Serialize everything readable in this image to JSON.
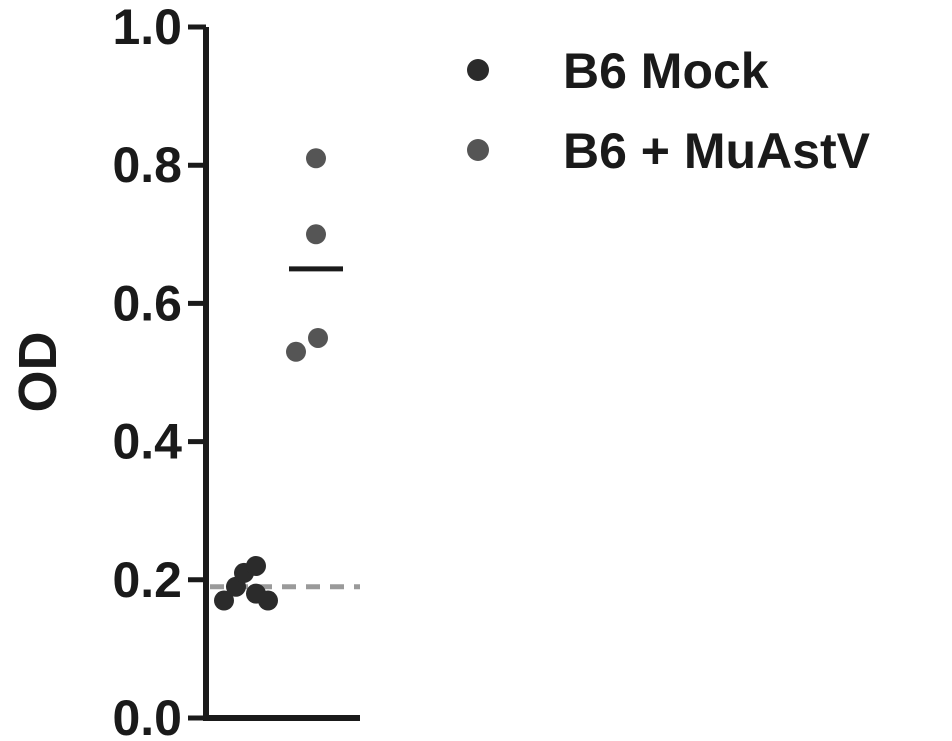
{
  "chart_data": {
    "type": "scatter",
    "ylabel": "OD",
    "ylim": [
      0.0,
      1.0
    ],
    "yticks": [
      "0.0",
      "0.2",
      "0.4",
      "0.6",
      "0.8",
      "1.0"
    ],
    "grid": false,
    "legend_position": "top-right",
    "series": [
      {
        "name": "B6 Mock",
        "color": "#2b2b2b",
        "values": [
          0.17,
          0.18,
          0.19,
          0.17,
          0.21,
          0.22
        ],
        "mean": 0.19
      },
      {
        "name": "B6 + MuAstV",
        "color": "#555555",
        "values": [
          0.81,
          0.7,
          0.55,
          0.53
        ],
        "mean": 0.65
      }
    ],
    "threshold": 0.19,
    "threshold_style": "dashed",
    "threshold_color": "#9a9a9a"
  }
}
